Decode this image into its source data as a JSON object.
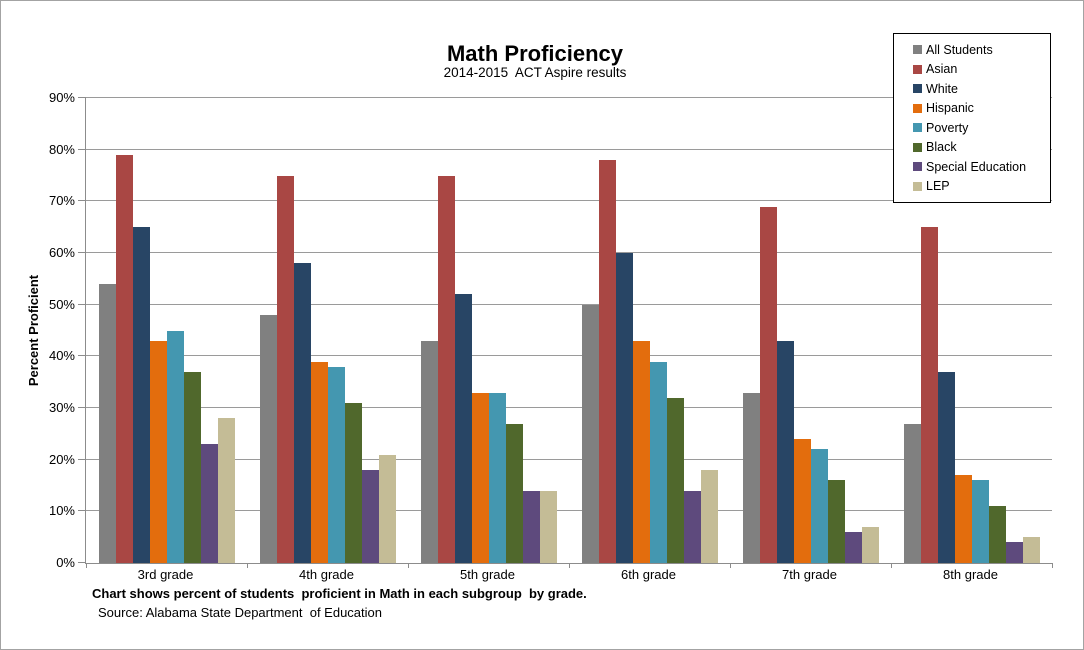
{
  "chart_data": {
    "type": "bar",
    "title": "Math Proficiency",
    "subtitle": "2014-2015  ACT Aspire results",
    "ylabel": "Percent Proficient",
    "xlabel": "",
    "ylim": [
      0,
      90
    ],
    "ytick_step": 10,
    "ytick_suffix": "%",
    "grid": true,
    "legend_position": "top-right",
    "gridline_color": "#9a9a9a",
    "axis_color": "#8c8c8c",
    "categories": [
      "3rd grade",
      "4th grade",
      "5th grade",
      "6th grade",
      "7th grade",
      "8th grade"
    ],
    "series": [
      {
        "name": "All Students",
        "color": "#808080",
        "values": [
          54,
          48,
          43,
          50,
          33,
          27
        ]
      },
      {
        "name": "Asian",
        "color": "#a94744",
        "values": [
          79,
          75,
          75,
          78,
          69,
          65
        ]
      },
      {
        "name": "White",
        "color": "#284565",
        "values": [
          65,
          58,
          52,
          60,
          43,
          37
        ]
      },
      {
        "name": "Hispanic",
        "color": "#e36d0d",
        "values": [
          43,
          39,
          33,
          43,
          24,
          17
        ]
      },
      {
        "name": "Poverty",
        "color": "#4497b0",
        "values": [
          45,
          38,
          33,
          39,
          22,
          16
        ]
      },
      {
        "name": "Black",
        "color": "#50682c",
        "values": [
          37,
          31,
          27,
          32,
          16,
          11
        ]
      },
      {
        "name": "Special Education",
        "color": "#5e4a7d",
        "values": [
          23,
          18,
          14,
          14,
          6,
          4
        ]
      },
      {
        "name": "LEP",
        "color": "#c4bc96",
        "values": [
          28,
          21,
          14,
          18,
          7,
          5
        ]
      }
    ]
  },
  "footer": {
    "note": "Chart shows percent of students  proficient in Math in each subgroup  by grade.",
    "source": "Source: Alabama State Department  of Education"
  }
}
